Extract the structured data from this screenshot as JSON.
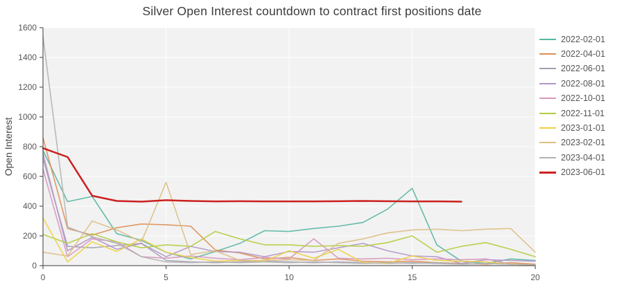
{
  "chart_data": {
    "type": "line",
    "title": "Silver Open Interest countdown to contract first positions date",
    "xlabel": "",
    "ylabel": "Open Interest",
    "xlim": [
      0,
      20
    ],
    "ylim": [
      0,
      1600
    ],
    "xticks": [
      0,
      5,
      10,
      15,
      20
    ],
    "yticks": [
      0,
      200,
      400,
      600,
      800,
      1000,
      1200,
      1400,
      1600
    ],
    "grid": true,
    "legend_position": "right",
    "plot_bg": "#f2f2f2",
    "grid_color": "#ffffff",
    "axis_color": "#3b3b3b",
    "tick_label_color": "#555555",
    "x": [
      0,
      1,
      2,
      3,
      4,
      5,
      6,
      7,
      8,
      9,
      10,
      11,
      12,
      13,
      14,
      15,
      16,
      17,
      18,
      19,
      20
    ],
    "series": [
      {
        "name": "2022-02-01",
        "color": "#57b5a2",
        "width": 1.6,
        "values": [
          775,
          430,
          465,
          215,
          170,
          90,
          45,
          95,
          150,
          235,
          230,
          250,
          265,
          290,
          380,
          520,
          140,
          30,
          15,
          45,
          35
        ]
      },
      {
        "name": "2022-04-01",
        "color": "#dd8e54",
        "width": 1.6,
        "values": [
          860,
          250,
          205,
          255,
          280,
          275,
          265,
          105,
          85,
          45,
          55,
          35,
          45,
          30,
          25,
          30,
          20,
          15,
          10,
          20,
          10
        ]
      },
      {
        "name": "2022-06-01",
        "color": "#a3a0b5",
        "width": 1.6,
        "values": [
          720,
          130,
          120,
          135,
          150,
          35,
          25,
          20,
          25,
          30,
          25,
          20,
          25,
          20,
          15,
          20,
          15,
          10,
          15,
          10,
          5
        ]
      },
      {
        "name": "2022-08-01",
        "color": "#b295c7",
        "width": 1.6,
        "values": [
          755,
          100,
          190,
          110,
          150,
          60,
          130,
          95,
          90,
          60,
          95,
          90,
          120,
          150,
          100,
          65,
          60,
          15,
          40,
          35,
          30
        ]
      },
      {
        "name": "2022-10-01",
        "color": "#d795bf",
        "width": 1.6,
        "values": [
          650,
          60,
          180,
          160,
          60,
          50,
          65,
          50,
          40,
          55,
          45,
          180,
          50,
          45,
          50,
          40,
          45,
          40,
          45,
          10,
          5
        ]
      },
      {
        "name": "2022-11-01",
        "color": "#b3cc3c",
        "width": 1.6,
        "values": [
          210,
          150,
          215,
          160,
          120,
          140,
          130,
          230,
          180,
          140,
          140,
          130,
          135,
          130,
          155,
          200,
          90,
          130,
          155,
          110,
          60
        ]
      },
      {
        "name": "2023-01-01",
        "color": "#ecd240",
        "width": 1.6,
        "values": [
          320,
          25,
          160,
          95,
          180,
          90,
          55,
          30,
          35,
          30,
          100,
          50,
          110,
          20,
          15,
          65,
          35,
          30,
          25,
          10,
          5
        ]
      },
      {
        "name": "2023-02-01",
        "color": "#ddbe83",
        "width": 1.6,
        "values": [
          90,
          65,
          300,
          240,
          160,
          560,
          75,
          100,
          35,
          35,
          40,
          35,
          150,
          180,
          220,
          240,
          245,
          235,
          245,
          250,
          90
        ]
      },
      {
        "name": "2023-04-01",
        "color": "#b2b2b2",
        "width": 1.6,
        "values": [
          1540,
          260,
          195,
          150,
          60,
          25,
          20,
          25,
          20,
          25,
          20,
          25,
          20,
          15,
          20,
          15,
          20,
          10,
          15,
          10,
          5
        ]
      },
      {
        "name": "2023-06-01",
        "color": "#cc1f1f",
        "width": 2.5,
        "values": [
          790,
          730,
          470,
          435,
          430,
          440,
          435,
          432,
          433,
          432,
          432,
          432,
          433,
          435,
          433,
          432,
          432,
          430,
          null,
          null,
          null
        ]
      }
    ]
  }
}
